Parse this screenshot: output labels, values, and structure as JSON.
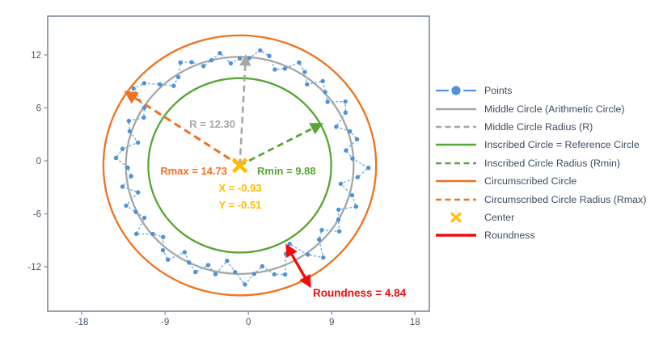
{
  "chart_data": {
    "type": "scatter",
    "description": "Roundness measurement plot: measured points around a middle (arithmetic) circle with inscribed, circumscribed circles, radius arrows and center marker",
    "axes": {
      "x_ticks": [
        -18,
        -9,
        0,
        9,
        18
      ],
      "y_ticks": [
        12,
        6,
        0,
        -6,
        -12
      ],
      "xlim": [
        -21.7,
        19.6
      ],
      "ylim": [
        -17.0,
        16.4
      ],
      "grid": false
    },
    "center": {
      "x": -0.93,
      "y": -0.51
    },
    "middle_radius": 12.3,
    "min_radius": 9.88,
    "max_radius": 14.73,
    "roundness": 4.84,
    "points": {
      "start_angle_deg": 90,
      "step_deg": 4.8,
      "radii": [
        12.1,
        11.6,
        12.9,
        12.3,
        11.9,
        12.8,
        13.3,
        12.0,
        11.5,
        12.6,
        13.9,
        14.4,
        12.2,
        11.7,
        13.0,
        12.5,
        11.3,
        12.8,
        13.4,
        12.1,
        11.8,
        12.9,
        11.4,
        13.1,
        12.4,
        11.9,
        13.6,
        12.2,
        11.6,
        12.7,
        13.2,
        11.5,
        12.3,
        13.0,
        11.8,
        12.6,
        10.9,
        12.1,
        13.5,
        12.4,
        11.7,
        12.9,
        13.3,
        11.2,
        10.4,
        12.5,
        13.8,
        12.0,
        11.5,
        13.1,
        12.3,
        11.8,
        13.4,
        12.6,
        11.1,
        12.8,
        13.9,
        12.2,
        11.6,
        13.0,
        12.5,
        11.3,
        12.9,
        13.5,
        11.9,
        12.4,
        13.1,
        11.7,
        12.7,
        13.3,
        12.0,
        11.5,
        12.8,
        13.2,
        12.2
      ]
    },
    "radius_arrows": {
      "middle_angle_deg": 87,
      "circumscribed_angle_deg": 146,
      "inscribed_angle_deg": 28
    },
    "roundness_arrow": {
      "from": {
        "x": 4.2,
        "y": -9.7
      },
      "to": {
        "x": 6.6,
        "y": -14.1
      }
    },
    "annotations": {
      "r": "R = 12.30",
      "rmax": "Rmax = 14.73",
      "rmin": "Rmin = 9.88",
      "x": "X = -0.93",
      "y": "Y = -0.51",
      "roundness": "Roundness = 4.84"
    },
    "legend": {
      "position": "right",
      "entries": [
        {
          "label": "Points",
          "swatch": "line-marker",
          "color_key": "points"
        },
        {
          "label": "Middle Circle (Arithmetic Circle)",
          "swatch": "solid",
          "color_key": "middle"
        },
        {
          "label": "Middle Circle Radius (R)",
          "swatch": "dashed",
          "color_key": "middle"
        },
        {
          "label": "Inscribed Circle = Reference Circle",
          "swatch": "solid",
          "color_key": "inscribed"
        },
        {
          "label": "Inscribed Circle Radius (Rmin)",
          "swatch": "dashed",
          "color_key": "inscribed"
        },
        {
          "label": "Circumscribed Circle",
          "swatch": "solid",
          "color_key": "circumscribed"
        },
        {
          "label": "Circumscribed Circle Radius (Rmax)",
          "swatch": "dashed",
          "color_key": "circumscribed"
        },
        {
          "label": "Center",
          "swatch": "x-marker",
          "color_key": "center"
        },
        {
          "label": "Roundness",
          "swatch": "thick",
          "color_key": "roundness"
        }
      ]
    },
    "colors": {
      "points": "#4E92D8",
      "points_line": "#82B1E0",
      "middle": "#A6A6A6",
      "inscribed": "#55A633",
      "circumscribed": "#EE7220",
      "center": "#FFBC00",
      "roundness": "#F20D0D",
      "axis_text": "#44546A",
      "legend_text": "#3D4C63",
      "border": "#8C96A5"
    }
  }
}
